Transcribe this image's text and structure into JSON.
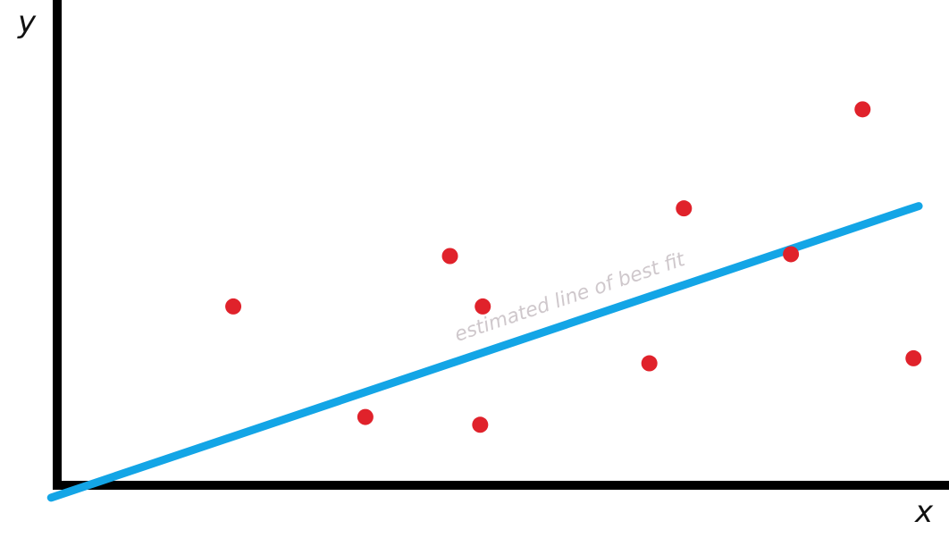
{
  "chart_data": {
    "type": "scatter",
    "title": "",
    "xlabel": "x",
    "ylabel": "y",
    "grid": false,
    "xlim": [
      0,
      100
    ],
    "ylim": [
      0,
      100
    ],
    "series": [
      {
        "points": [
          {
            "x": 20.4,
            "y": 39.0
          },
          {
            "x": 35.7,
            "y": 14.9
          },
          {
            "x": 45.5,
            "y": 50.0
          },
          {
            "x": 49.3,
            "y": 39.0
          },
          {
            "x": 49.0,
            "y": 13.2
          },
          {
            "x": 68.6,
            "y": 26.6
          },
          {
            "x": 72.6,
            "y": 60.4
          },
          {
            "x": 85.0,
            "y": 50.4
          },
          {
            "x": 93.3,
            "y": 82.0
          },
          {
            "x": 99.2,
            "y": 27.7
          }
        ],
        "color": "#e0222b"
      }
    ],
    "fit_line": {
      "label": "estimated line of best fit",
      "from": {
        "x": -0.7,
        "y": -2.7
      },
      "to": {
        "x": 99.8,
        "y": 60.9
      },
      "color": "#13a5e6"
    }
  }
}
